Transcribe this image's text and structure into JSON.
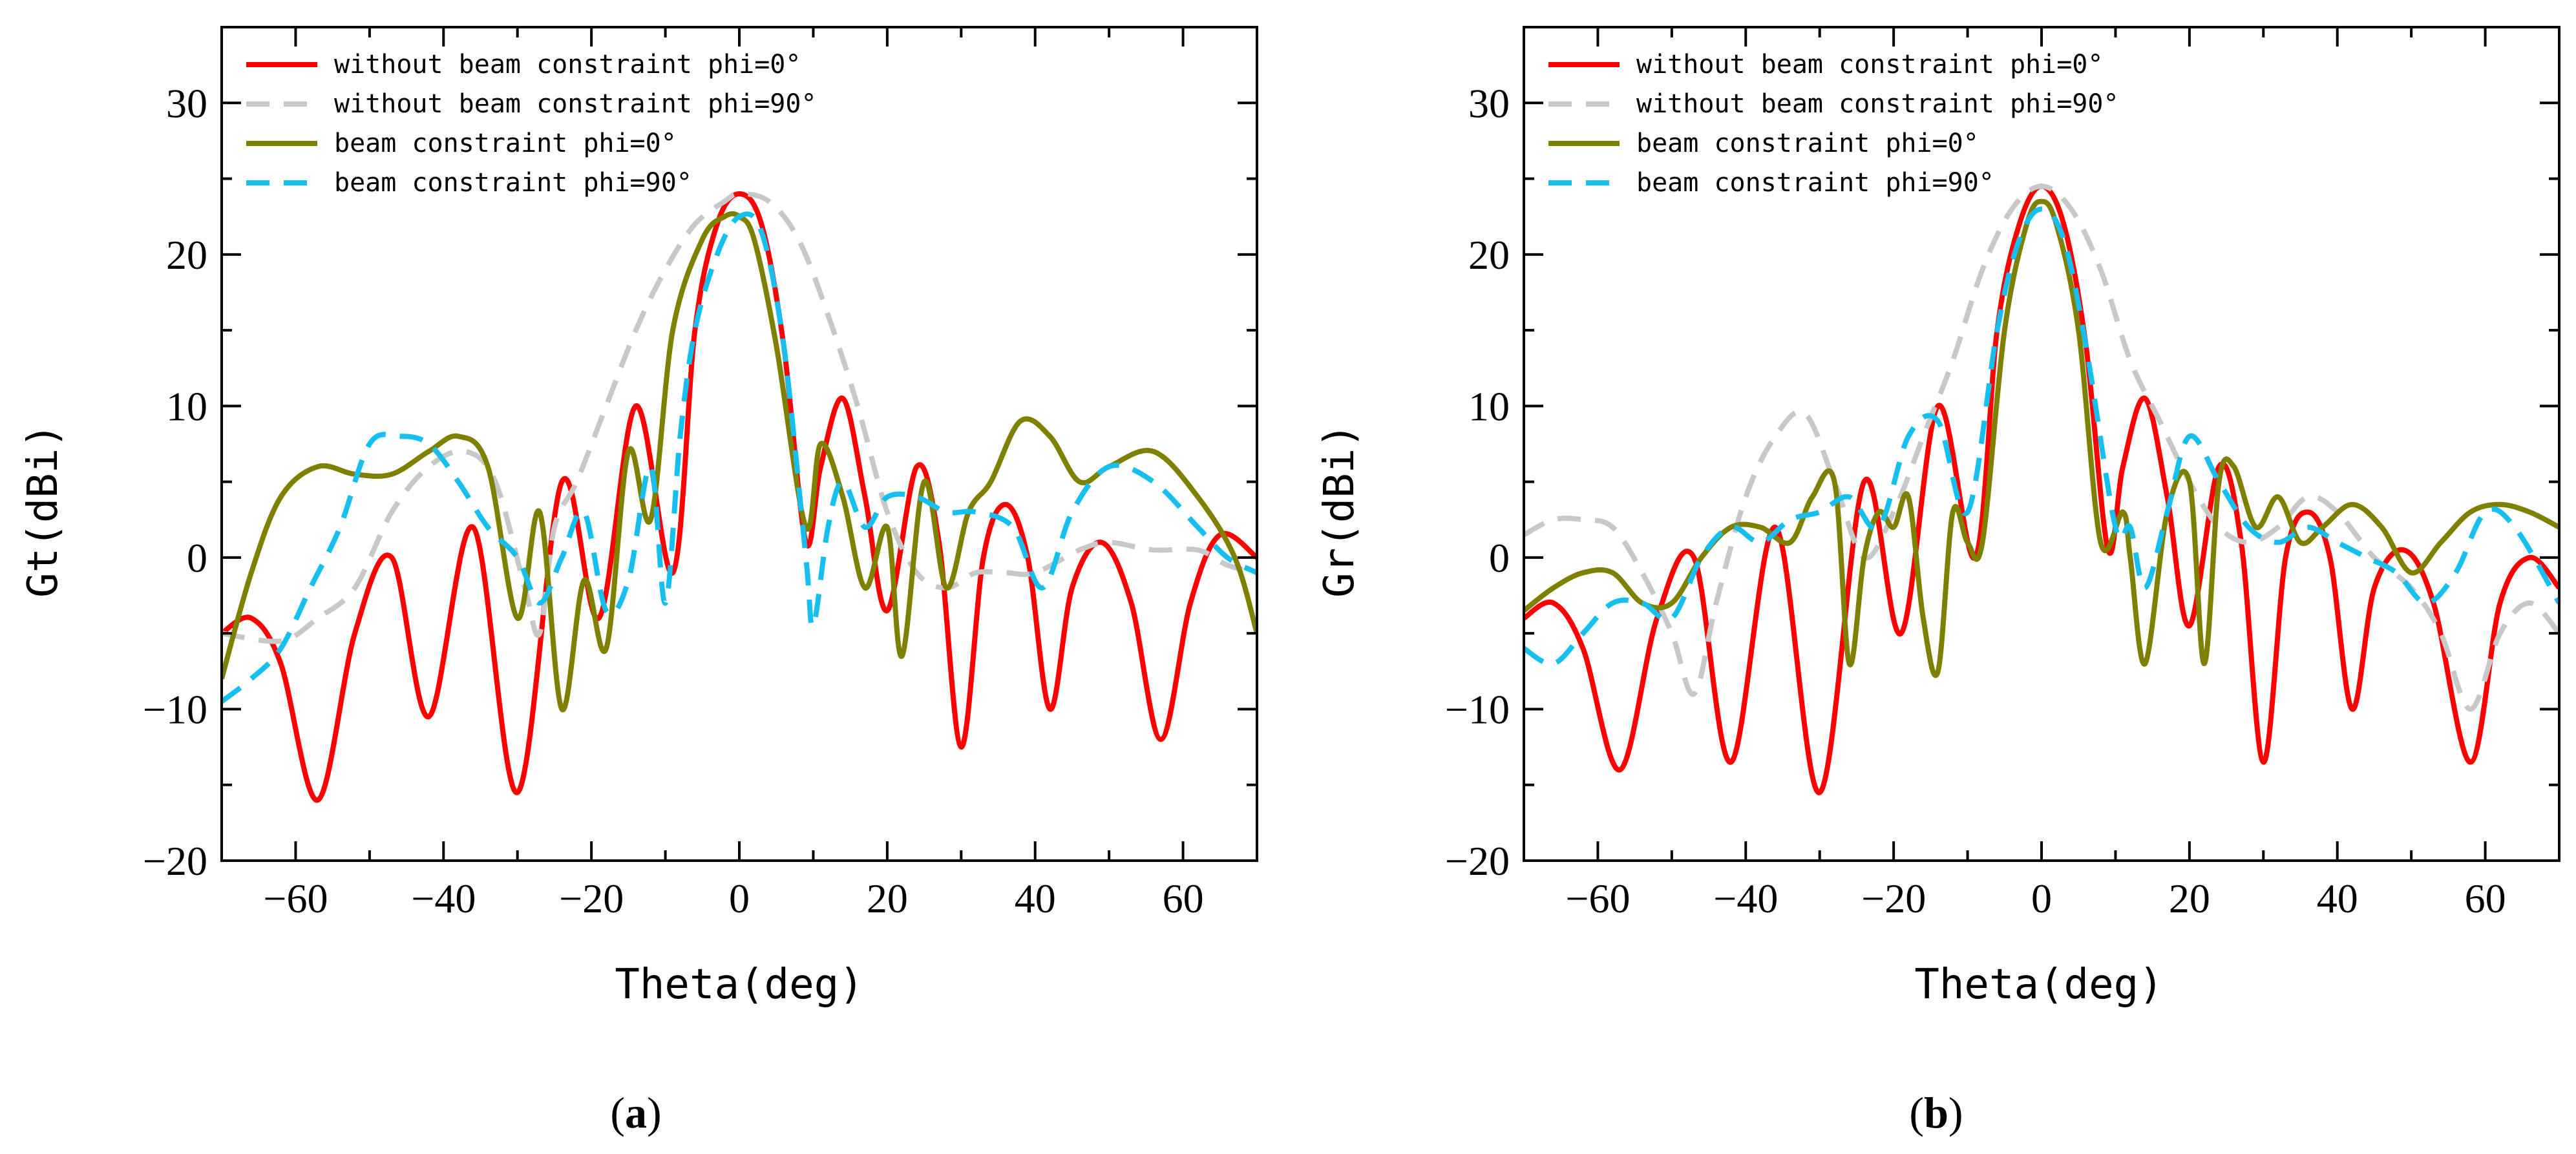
{
  "chart_data": [
    {
      "type": "line",
      "panel_label": "a",
      "xlabel": "Theta(deg)",
      "ylabel": "Gt(dBi)",
      "xlim": [
        -70,
        70
      ],
      "ylim": [
        -20,
        35
      ],
      "xticks": [
        -60,
        -40,
        -20,
        0,
        20,
        40,
        60
      ],
      "yticks": [
        -20,
        -10,
        0,
        10,
        20,
        30
      ],
      "grid": false,
      "legend_position": "top-left",
      "series": [
        {
          "name": "without beam constraint phi=0°",
          "color": "#ff0000",
          "dash": "solid",
          "x": [
            -70,
            -66,
            -62,
            -57,
            -52,
            -47,
            -42,
            -36,
            -30,
            -24,
            -19,
            -14,
            -9,
            -6,
            -3,
            0,
            3,
            6,
            9,
            11,
            14,
            17,
            20,
            24,
            27,
            30,
            33,
            36,
            39,
            42,
            45,
            49,
            53,
            57,
            61,
            65,
            70
          ],
          "y": [
            -5,
            -4,
            -7,
            -16,
            -5,
            0,
            -10.5,
            2,
            -15.5,
            5,
            -4,
            10,
            -1,
            15,
            22,
            24,
            22,
            14,
            1,
            6,
            10.5,
            4,
            -3.5,
            6,
            1,
            -12.5,
            0,
            3.5,
            0,
            -10,
            -2,
            1,
            -3,
            -12,
            -3,
            1.5,
            0
          ]
        },
        {
          "name": "without beam constraint phi=90°",
          "color": "#c8c8c8",
          "dash": "dashed",
          "x": [
            -70,
            -62,
            -57,
            -52,
            -47,
            -42,
            -37,
            -33,
            -29,
            -27,
            -25,
            -22,
            -18,
            -14,
            -10,
            -6,
            -2,
            0,
            4,
            8,
            12,
            16,
            20,
            24,
            28,
            32,
            36,
            40,
            46,
            50,
            56,
            62,
            66,
            70
          ],
          "y": [
            -5,
            -5.5,
            -4,
            -2,
            3,
            6,
            7,
            5,
            -2,
            -5,
            2,
            5,
            10,
            15,
            19,
            22,
            23.5,
            24,
            23.5,
            21,
            16,
            10,
            3,
            -1,
            -2,
            -1,
            -1,
            -1,
            0.5,
            1,
            0.5,
            0.5,
            -0.5,
            -1
          ]
        },
        {
          "name": "beam constraint phi=0°",
          "color": "#808000",
          "dash": "solid",
          "x": [
            -70,
            -66,
            -62,
            -57,
            -52,
            -47,
            -42,
            -38,
            -34,
            -30,
            -27,
            -24,
            -21,
            -18,
            -15,
            -12,
            -9,
            -5,
            -2,
            0,
            2,
            5,
            9,
            11,
            14,
            17,
            20,
            22,
            25,
            28,
            31,
            34,
            38,
            42,
            46,
            50,
            56,
            62,
            67,
            70
          ],
          "y": [
            -8,
            -1,
            4,
            6,
            5.5,
            5.5,
            7,
            8,
            6,
            -4,
            3,
            -10,
            -1.5,
            -6,
            7,
            2.5,
            15,
            21,
            22.5,
            22.5,
            21,
            14,
            2,
            7.5,
            4,
            -2,
            2,
            -6.5,
            5,
            -2,
            3,
            5,
            9,
            8,
            5,
            6,
            7,
            4,
            0,
            -5
          ]
        },
        {
          "name": "beam constraint phi=90°",
          "color": "#17bfef",
          "dash": "dashed",
          "x": [
            -70,
            -66,
            -62,
            -58,
            -54,
            -50,
            -46,
            -42,
            -38,
            -34,
            -30,
            -27,
            -24,
            -21,
            -18,
            -15,
            -12,
            -10,
            -8,
            -6,
            -3,
            0,
            3,
            6,
            9,
            10,
            12,
            14,
            17,
            20,
            24,
            28,
            32,
            37,
            41,
            45,
            50,
            56,
            62,
            66,
            70
          ],
          "y": [
            -9.5,
            -8,
            -6,
            -2,
            2,
            7.5,
            8,
            7.5,
            5,
            2,
            0,
            -3,
            0,
            3,
            -3.5,
            -1.5,
            6,
            -3,
            8,
            15,
            20,
            22.5,
            21.5,
            14,
            0,
            -4.5,
            2,
            5,
            2,
            4,
            4,
            3,
            3,
            2,
            -2,
            3,
            6,
            5,
            2,
            0,
            -1
          ]
        }
      ]
    },
    {
      "type": "line",
      "panel_label": "b",
      "xlabel": "Theta(deg)",
      "ylabel": "Gr(dBi)",
      "xlim": [
        -70,
        70
      ],
      "ylim": [
        -20,
        35
      ],
      "xticks": [
        -60,
        -40,
        -20,
        0,
        20,
        40,
        60
      ],
      "yticks": [
        -20,
        -10,
        0,
        10,
        20,
        30
      ],
      "grid": false,
      "legend_position": "top-left",
      "series": [
        {
          "name": "without beam constraint phi=0°",
          "color": "#ff0000",
          "dash": "solid",
          "x": [
            -70,
            -66,
            -62,
            -57,
            -52,
            -47,
            -42,
            -36,
            -30,
            -24,
            -19,
            -14,
            -9,
            -6,
            -3,
            0,
            3,
            6,
            9,
            11,
            14,
            17,
            20,
            24,
            27,
            30,
            33,
            36,
            39,
            42,
            45,
            49,
            53,
            58,
            62,
            66,
            70
          ],
          "y": [
            -4,
            -3,
            -6,
            -14,
            -4,
            0,
            -13.5,
            2,
            -15.5,
            5,
            -5,
            10,
            0,
            15,
            22,
            24.5,
            22,
            14,
            0.5,
            6,
            10.5,
            4,
            -4.5,
            6,
            1,
            -13.5,
            0,
            3,
            0,
            -10,
            -2,
            0.5,
            -3,
            -13.5,
            -3,
            0,
            -2
          ]
        },
        {
          "name": "without beam constraint phi=90°",
          "color": "#c8c8c8",
          "dash": "dashed",
          "x": [
            -70,
            -66,
            -62,
            -58,
            -54,
            -50,
            -47,
            -44,
            -40,
            -36,
            -32,
            -28,
            -24,
            -20,
            -16,
            -12,
            -8,
            -4,
            0,
            4,
            8,
            12,
            16,
            20,
            24,
            28,
            32,
            36,
            40,
            45,
            50,
            54,
            58,
            62,
            66,
            70
          ],
          "y": [
            1.5,
            2.5,
            2.5,
            2,
            -1,
            -5,
            -9,
            -3,
            4,
            8,
            9.5,
            5,
            0,
            3,
            8,
            13,
            19,
            23,
            24.5,
            23,
            19,
            13,
            9,
            5,
            2,
            1,
            2,
            4,
            3,
            0,
            -2,
            -5,
            -10,
            -5,
            -3,
            -5
          ]
        },
        {
          "name": "beam constraint phi=0°",
          "color": "#808000",
          "dash": "solid",
          "x": [
            -70,
            -66,
            -62,
            -58,
            -54,
            -50,
            -46,
            -42,
            -38,
            -34,
            -31,
            -28,
            -26,
            -24,
            -22,
            -20,
            -18,
            -16,
            -14,
            -12,
            -10,
            -8,
            -5,
            -2,
            0,
            2,
            5,
            8,
            11,
            12,
            14,
            17,
            20,
            22,
            24,
            26,
            29,
            32,
            35,
            38,
            42,
            46,
            50,
            54,
            58,
            62,
            66,
            70
          ],
          "y": [
            -3.5,
            -2,
            -1,
            -1,
            -3,
            -3,
            0,
            2,
            2,
            1,
            4,
            5,
            -7,
            0,
            3,
            2,
            4,
            -4,
            -7.5,
            3,
            1,
            1,
            15,
            22,
            23.5,
            22,
            15,
            1,
            3,
            0,
            -7,
            3,
            5,
            -7,
            5,
            6,
            2,
            4,
            1,
            2,
            3.5,
            2,
            -1,
            1,
            3,
            3.5,
            3,
            2
          ]
        },
        {
          "name": "beam constraint phi=90°",
          "color": "#17bfef",
          "dash": "dashed",
          "x": [
            -70,
            -66,
            -62,
            -58,
            -54,
            -50,
            -46,
            -42,
            -38,
            -34,
            -30,
            -26,
            -22,
            -18,
            -14,
            -10,
            -6,
            -3,
            0,
            3,
            6,
            10,
            12,
            14,
            17,
            20,
            24,
            28,
            32,
            36,
            40,
            44,
            48,
            52,
            56,
            60,
            64,
            70
          ],
          "y": [
            -6,
            -7,
            -5,
            -3,
            -3,
            -4,
            0,
            2,
            1,
            2.5,
            3,
            4,
            2,
            8,
            9,
            3,
            15,
            21,
            23,
            21,
            14,
            2,
            2,
            -2,
            3,
            8,
            5,
            2,
            1,
            2,
            1,
            0,
            -1,
            -3,
            -1,
            3,
            2,
            -3
          ]
        }
      ]
    }
  ]
}
